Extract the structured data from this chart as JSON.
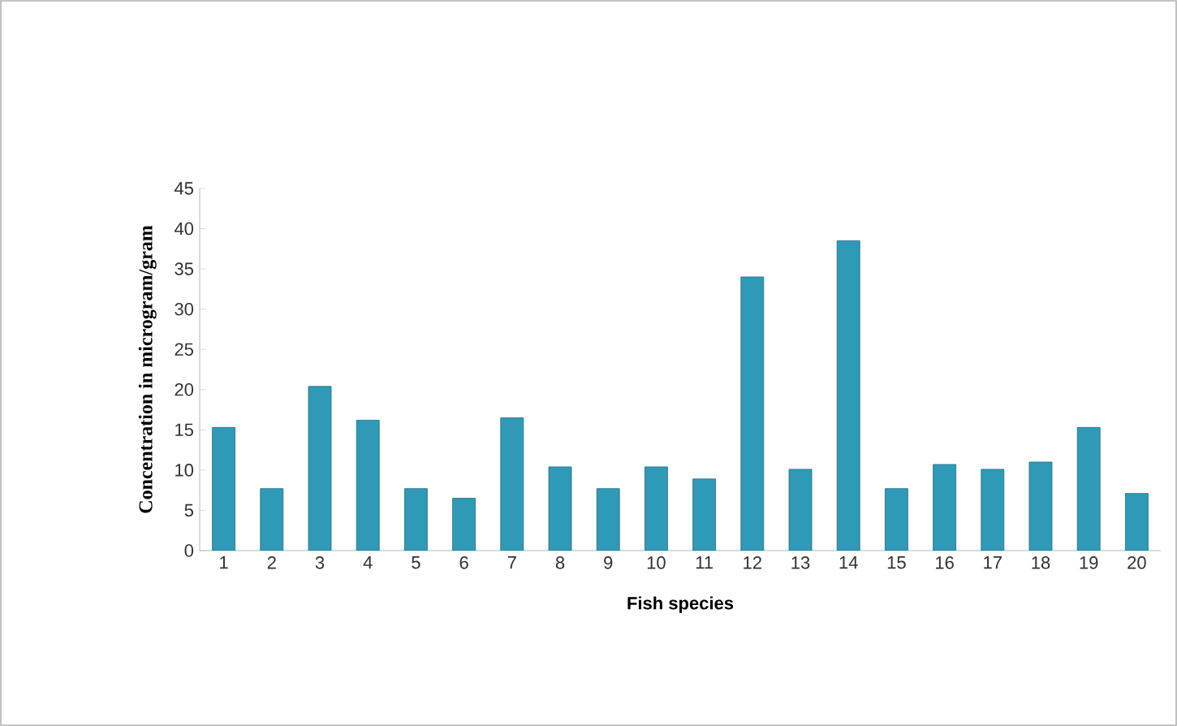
{
  "chart_data": {
    "type": "bar",
    "xlabel": "Fish species",
    "ylabel": "Concentration in microgram/gram",
    "categories": [
      "1",
      "2",
      "3",
      "4",
      "5",
      "6",
      "7",
      "8",
      "9",
      "10",
      "11",
      "12",
      "13",
      "14",
      "15",
      "16",
      "17",
      "18",
      "19",
      "20"
    ],
    "values": [
      15.3,
      7.7,
      20.4,
      16.2,
      7.7,
      6.5,
      16.5,
      10.4,
      7.7,
      10.4,
      8.9,
      34,
      10.1,
      38.5,
      7.7,
      10.7,
      10.1,
      11,
      15.3,
      7.1
    ],
    "color": "#2e9ab8",
    "ylim": [
      0,
      45
    ],
    "yticks": [
      0,
      5,
      10,
      15,
      20,
      25,
      30,
      35,
      40,
      45
    ]
  }
}
